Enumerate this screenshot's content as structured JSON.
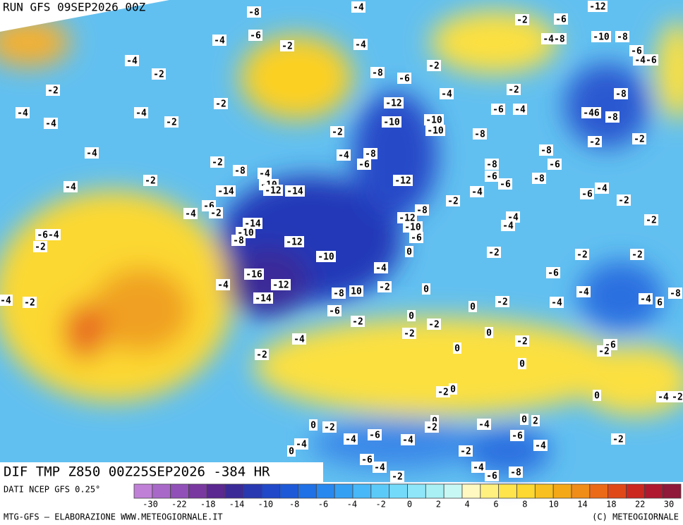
{
  "header": {
    "run": "RUN GFS 09SEP2026 00Z"
  },
  "map": {
    "caption": "DIF TMP Z850 00Z25SEP2026 -384 HR",
    "labels": [
      "-8",
      "-4",
      "-12",
      "-2",
      "-6",
      "-6",
      "-4",
      "-2",
      "-4",
      "-4-8",
      "-10",
      "-8",
      "-6",
      "-4-6",
      "-4",
      "-2",
      "-2",
      "-8",
      "-6",
      "-2",
      "-2",
      "-4",
      "-2",
      "-8",
      "-12",
      "-6",
      "-4",
      "-4",
      "-4",
      "-10",
      "-46",
      "-8",
      "-4",
      "-2",
      "-10",
      "-10",
      "-2",
      "-8",
      "-2",
      "-2",
      "-4",
      "-4",
      "-8",
      "-6",
      "-2",
      "-8",
      "-8",
      "-6",
      "-8",
      "-4",
      "-6",
      "-6",
      "-8",
      "-2",
      "-4",
      "-10",
      "-12",
      "-14",
      "-14",
      "-12",
      "-4",
      "-6",
      "-4",
      "-2",
      "-2",
      "-6",
      "-4",
      "-2",
      "-8",
      "-4",
      "-4",
      "-12",
      "-10",
      "-14",
      "-10",
      "-6-4",
      "-8",
      "-12",
      "-6",
      "-2",
      "-2",
      "0",
      "-2",
      "-2",
      "-2",
      "-10",
      "-4",
      "-16",
      "-6",
      "-4",
      "-12",
      "-2",
      "0",
      "-8",
      "10",
      "-4",
      "-8",
      "-4",
      "-2",
      "-14",
      "-2",
      "-4",
      "-4",
      "6",
      "0",
      "-6",
      "0",
      "-2",
      "-2",
      "-2",
      "0",
      "-4",
      "-2",
      "-6",
      "-2",
      "0",
      "-2",
      "0",
      "-2",
      "0",
      "0",
      "-4",
      "-2",
      "0",
      "-2",
      "-4",
      "0",
      "2",
      "0",
      "-2",
      "-6",
      "-4",
      "-4",
      "-6",
      "-4",
      "-2",
      "-4",
      "0",
      "-2",
      "-6",
      "-4",
      "-2",
      "-4",
      "-6",
      "-8"
    ]
  },
  "legend": {
    "source": "DATI NCEP GFS 0.25°",
    "colors": [
      "#c080d8",
      "#a868c8",
      "#9050b8",
      "#7838a0",
      "#5a2890",
      "#3a2a98",
      "#2838b0",
      "#2048c8",
      "#1e5ad8",
      "#2070e6",
      "#2888f0",
      "#34a0f4",
      "#48b8f8",
      "#5ccaf8",
      "#74dafa",
      "#8ee6f8",
      "#a8f0f4",
      "#c8f8f4",
      "#fff8c0",
      "#fff080",
      "#ffe44c",
      "#fcd830",
      "#f8c020",
      "#f4a818",
      "#f08c18",
      "#ea6a18",
      "#e04818",
      "#cc2820",
      "#b01830",
      "#901838"
    ],
    "ticks": [
      "-30",
      "-22",
      "-18",
      "-14",
      "-10",
      "-8",
      "-6",
      "-4",
      "-2",
      "0",
      "2",
      "4",
      "6",
      "8",
      "10",
      "14",
      "18",
      "22",
      "30"
    ]
  },
  "footer": {
    "credit": "MTG-GFS – ELABORAZIONE WWW.METEOGIORNALE.IT",
    "copyright": "(C) METEOGIORNALE"
  }
}
